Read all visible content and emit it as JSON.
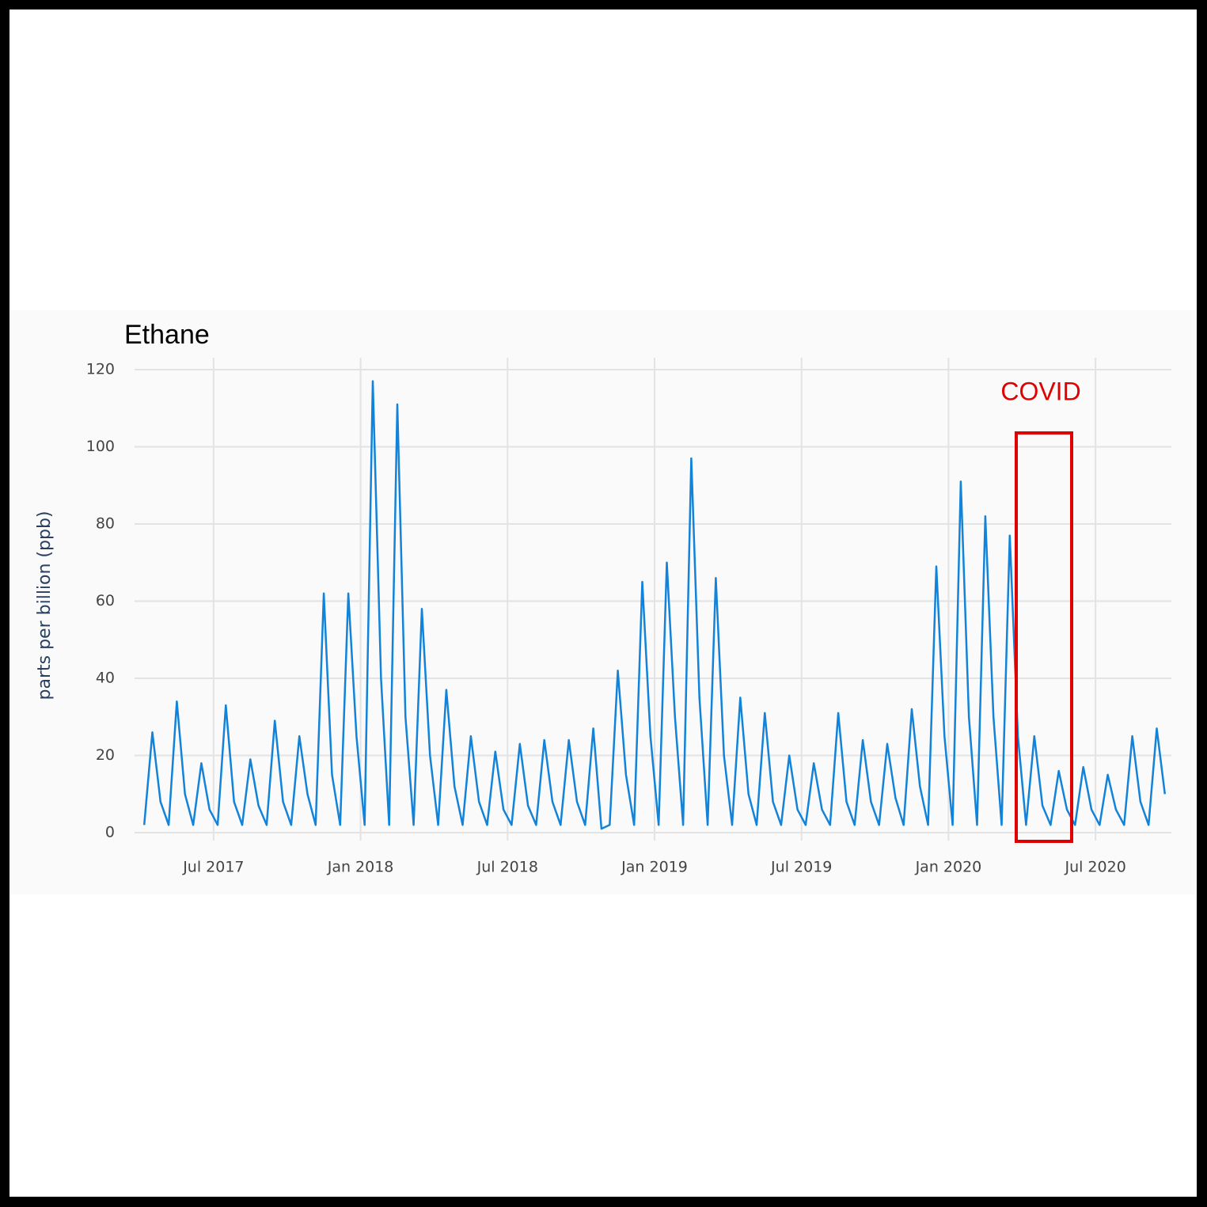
{
  "chart_data": {
    "type": "line",
    "title": "Ethane",
    "y_label": "parts per billion (ppb)",
    "annotation": "COVID",
    "color": "#1283d8",
    "grid": true,
    "xlim": [
      "2017-04",
      "2020-10"
    ],
    "xticks": [
      {
        "value": "2017-07",
        "label": "Jul 2017"
      },
      {
        "value": "2018-01",
        "label": "Jan 2018"
      },
      {
        "value": "2018-07",
        "label": "Jul 2018"
      },
      {
        "value": "2019-01",
        "label": "Jan 2019"
      },
      {
        "value": "2019-07",
        "label": "Jul 2019"
      },
      {
        "value": "2020-01",
        "label": "Jan 2020"
      },
      {
        "value": "2020-07",
        "label": "Jul 2020"
      }
    ],
    "ylim": [
      0,
      120
    ],
    "yticks": [
      0,
      20,
      40,
      60,
      80,
      100,
      120
    ],
    "x": [
      "2017-04",
      "2017-04",
      "2017-04",
      "2017-05",
      "2017-05",
      "2017-05",
      "2017-06",
      "2017-06",
      "2017-06",
      "2017-07",
      "2017-07",
      "2017-07",
      "2017-08",
      "2017-08",
      "2017-08",
      "2017-09",
      "2017-09",
      "2017-09",
      "2017-10",
      "2017-10",
      "2017-10",
      "2017-11",
      "2017-11",
      "2017-11",
      "2017-12",
      "2017-12",
      "2017-12",
      "2018-01",
      "2018-01",
      "2018-01",
      "2018-02",
      "2018-02",
      "2018-02",
      "2018-03",
      "2018-03",
      "2018-03",
      "2018-04",
      "2018-04",
      "2018-04",
      "2018-05",
      "2018-05",
      "2018-05",
      "2018-06",
      "2018-06",
      "2018-06",
      "2018-07",
      "2018-07",
      "2018-07",
      "2018-08",
      "2018-08",
      "2018-08",
      "2018-09",
      "2018-09",
      "2018-09",
      "2018-10",
      "2018-10",
      "2018-10",
      "2018-11",
      "2018-11",
      "2018-11",
      "2018-12",
      "2018-12",
      "2018-12",
      "2019-01",
      "2019-01",
      "2019-01",
      "2019-02",
      "2019-02",
      "2019-02",
      "2019-03",
      "2019-03",
      "2019-03",
      "2019-04",
      "2019-04",
      "2019-04",
      "2019-05",
      "2019-05",
      "2019-05",
      "2019-06",
      "2019-06",
      "2019-06",
      "2019-07",
      "2019-07",
      "2019-07",
      "2019-08",
      "2019-08",
      "2019-08",
      "2019-09",
      "2019-09",
      "2019-09",
      "2019-10",
      "2019-10",
      "2019-10",
      "2019-11",
      "2019-11",
      "2019-11",
      "2019-12",
      "2019-12",
      "2019-12",
      "2020-01",
      "2020-01",
      "2020-01",
      "2020-02",
      "2020-02",
      "2020-02",
      "2020-03",
      "2020-03",
      "2020-03",
      "2020-04",
      "2020-04",
      "2020-04",
      "2020-05",
      "2020-05",
      "2020-05",
      "2020-06",
      "2020-06",
      "2020-06",
      "2020-07",
      "2020-07",
      "2020-07",
      "2020-08",
      "2020-08",
      "2020-08",
      "2020-09",
      "2020-09",
      "2020-09"
    ],
    "values": [
      2,
      26,
      8,
      2,
      34,
      10,
      2,
      18,
      6,
      2,
      33,
      8,
      2,
      19,
      7,
      2,
      29,
      8,
      2,
      25,
      10,
      2,
      62,
      15,
      2,
      62,
      25,
      2,
      117,
      40,
      2,
      111,
      30,
      2,
      58,
      20,
      2,
      37,
      12,
      2,
      25,
      8,
      2,
      21,
      6,
      2,
      23,
      7,
      2,
      24,
      8,
      2,
      24,
      8,
      2,
      27,
      1,
      2,
      42,
      15,
      2,
      65,
      25,
      2,
      70,
      30,
      2,
      97,
      35,
      2,
      66,
      20,
      2,
      35,
      10,
      2,
      31,
      8,
      2,
      20,
      6,
      2,
      18,
      6,
      2,
      31,
      8,
      2,
      24,
      8,
      2,
      23,
      9,
      2,
      32,
      12,
      2,
      69,
      25,
      2,
      91,
      30,
      2,
      82,
      30,
      2,
      77,
      25,
      2,
      25,
      7,
      2,
      16,
      6,
      2,
      17,
      6,
      2,
      15,
      6,
      2,
      25,
      8,
      2,
      27,
      10
    ]
  }
}
